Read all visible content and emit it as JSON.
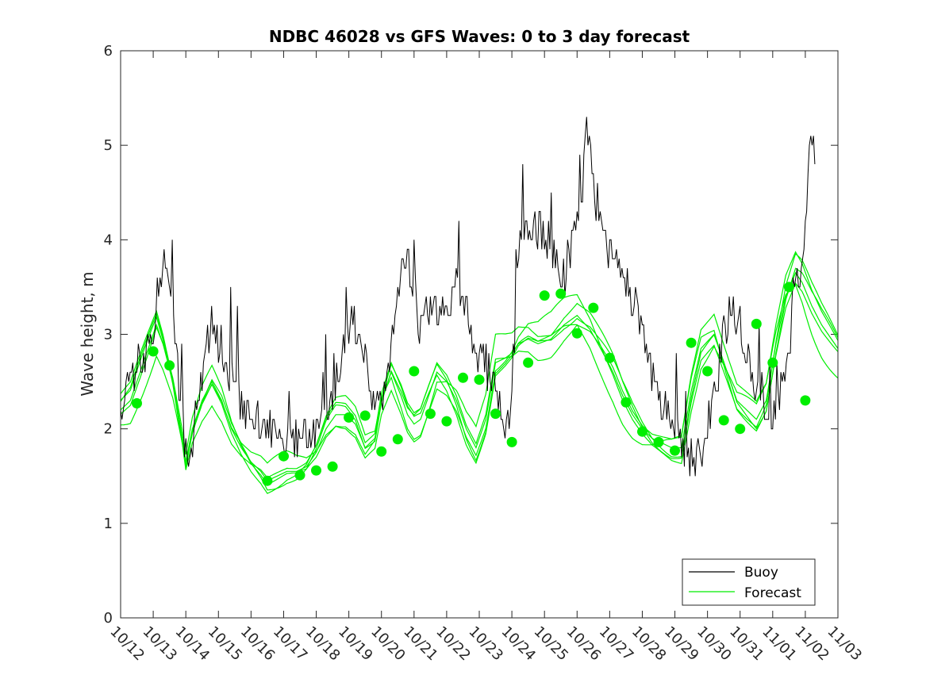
{
  "chart_data": {
    "type": "line",
    "title": "NDBC 46028 vs GFS Waves: 0 to 3 day forecast",
    "xlabel": "",
    "ylabel": "Wave height, m",
    "ylim": [
      0,
      6
    ],
    "yticks": [
      0,
      1,
      2,
      3,
      4,
      5,
      6
    ],
    "xlim_days": [
      0,
      22
    ],
    "x_tick_labels": [
      "10/12",
      "10/13",
      "10/14",
      "10/15",
      "10/16",
      "10/17",
      "10/18",
      "10/19",
      "10/20",
      "10/21",
      "10/22",
      "10/23",
      "10/24",
      "10/25",
      "10/26",
      "10/27",
      "10/28",
      "10/29",
      "10/30",
      "10/31",
      "11/01",
      "11/02",
      "11/03"
    ],
    "legend": {
      "position": "bottom-right",
      "entries": [
        "Buoy",
        "Forecast"
      ]
    },
    "colors": {
      "buoy": "#000000",
      "forecast": "#00ee00"
    },
    "buoy_anchors": {
      "x_days": [
        0,
        0.3,
        0.5,
        0.8,
        1.0,
        1.2,
        1.35,
        1.5,
        1.7,
        1.9,
        2.0,
        2.2,
        2.5,
        2.8,
        3.0,
        3.3,
        3.6,
        3.9,
        4.2,
        4.5,
        4.8,
        5.0,
        5.2,
        5.5,
        5.8,
        6.0,
        6.3,
        6.6,
        6.9,
        7.1,
        7.4,
        7.7,
        7.95,
        8.2,
        8.5,
        8.8,
        9.0,
        9.2,
        9.4,
        9.7,
        10.0,
        10.3,
        10.6,
        10.9,
        11.2,
        11.5,
        11.8,
        12.0,
        12.2,
        12.4,
        12.8,
        13.2,
        13.6,
        14.0,
        14.2,
        14.3,
        14.6,
        14.9,
        15.2,
        15.5,
        15.8,
        16.1,
        16.4,
        16.7,
        17.0,
        17.3,
        17.6,
        17.9,
        18.2,
        18.5,
        18.8,
        19.2,
        19.5,
        19.8,
        20.1,
        20.4,
        20.7,
        20.9,
        21.1,
        21.2,
        21.3
      ],
      "heights_m": [
        2.3,
        2.5,
        2.7,
        2.8,
        3.1,
        3.5,
        3.8,
        3.6,
        2.8,
        2.1,
        1.8,
        1.9,
        2.6,
        3.2,
        2.9,
        2.6,
        2.3,
        2.1,
        2.1,
        2.0,
        1.9,
        1.85,
        1.8,
        1.9,
        1.85,
        2.0,
        2.2,
        2.5,
        2.9,
        3.2,
        2.8,
        2.4,
        2.2,
        2.5,
        3.6,
        3.8,
        3.5,
        3.0,
        3.2,
        3.3,
        3.2,
        3.5,
        3.3,
        2.8,
        2.7,
        2.3,
        2.0,
        2.4,
        3.8,
        4.2,
        4.1,
        3.9,
        3.6,
        4.2,
        4.7,
        5.3,
        4.4,
        4.0,
        3.7,
        3.5,
        3.3,
        2.8,
        2.5,
        2.2,
        2.0,
        1.8,
        1.7,
        1.7,
        2.3,
        3.0,
        3.3,
        2.8,
        2.4,
        2.2,
        2.1,
        2.6,
        3.4,
        3.8,
        4.6,
        5.2,
        4.6
      ]
    },
    "forecast_anchors": {
      "x_days": [
        0,
        0.3,
        0.6,
        0.9,
        1.1,
        1.3,
        1.6,
        1.9,
        2.0,
        2.2,
        2.5,
        2.8,
        3.1,
        3.4,
        3.7,
        4.0,
        4.3,
        4.5,
        4.8,
        5.1,
        5.4,
        5.7,
        6.0,
        6.3,
        6.6,
        6.9,
        7.2,
        7.5,
        7.8,
        8.0,
        8.3,
        8.6,
        8.8,
        9.0,
        9.2,
        9.4,
        9.7,
        10.0,
        10.3,
        10.6,
        10.9,
        11.2,
        11.5,
        11.8,
        12.0,
        12.2,
        12.5,
        12.8,
        13.2,
        13.6,
        14.0,
        14.4,
        14.8,
        15.1,
        15.4,
        15.7,
        16.0,
        16.3,
        16.6,
        16.9,
        17.2,
        17.5,
        17.8,
        18.2,
        18.6,
        18.9,
        19.2,
        19.5,
        19.8,
        20.1,
        20.4,
        20.7,
        20.9,
        21.2,
        21.5,
        21.8,
        22.0
      ],
      "heights_m": [
        2.2,
        2.3,
        2.6,
        2.9,
        3.1,
        2.9,
        2.5,
        1.9,
        1.65,
        2.0,
        2.3,
        2.5,
        2.3,
        2.0,
        1.8,
        1.65,
        1.55,
        1.45,
        1.5,
        1.55,
        1.55,
        1.6,
        1.75,
        2.0,
        2.15,
        2.15,
        2.05,
        1.8,
        1.9,
        2.3,
        2.6,
        2.35,
        2.15,
        2.05,
        2.1,
        2.3,
        2.6,
        2.5,
        2.3,
        2.0,
        1.8,
        2.1,
        2.7,
        2.75,
        2.8,
        2.9,
        2.95,
        2.9,
        2.95,
        3.1,
        3.2,
        3.05,
        2.8,
        2.6,
        2.35,
        2.15,
        2.0,
        1.9,
        1.85,
        1.8,
        1.8,
        2.4,
        2.85,
        3.0,
        2.6,
        2.3,
        2.2,
        2.1,
        2.3,
        2.9,
        3.4,
        3.65,
        3.55,
        3.3,
        3.1,
        2.95,
        2.85
      ]
    },
    "forecast_markers": {
      "x_days": [
        0.5,
        1.0,
        1.5,
        4.5,
        5.0,
        5.5,
        6.0,
        6.5,
        7.0,
        7.5,
        8.0,
        8.5,
        9.0,
        9.5,
        10.0,
        10.5,
        11.0,
        11.5,
        12.0,
        12.5,
        13.0,
        13.5,
        14.0,
        14.5,
        15.0,
        15.5,
        16.0,
        16.5,
        17.0,
        17.5,
        18.0,
        18.5,
        19.0,
        19.5,
        20.0,
        20.5,
        21.0
      ],
      "heights_m": [
        2.27,
        2.82,
        2.67,
        1.45,
        1.71,
        1.51,
        1.56,
        1.6,
        2.12,
        2.14,
        1.76,
        1.89,
        2.61,
        2.16,
        2.08,
        2.54,
        2.52,
        2.16,
        1.86,
        2.7,
        3.41,
        3.43,
        3.01,
        3.28,
        2.75,
        2.28,
        1.97,
        1.86,
        1.77,
        2.91,
        2.61,
        2.09,
        2.0,
        3.11,
        2.7,
        3.5,
        2.3
      ]
    }
  }
}
